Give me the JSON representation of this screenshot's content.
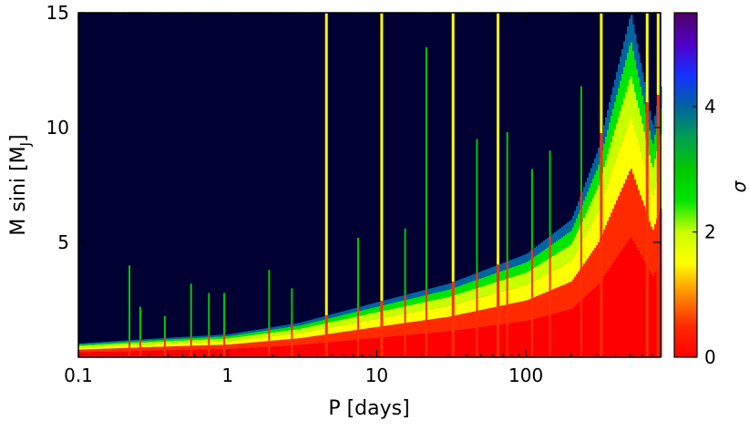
{
  "chart_data": {
    "type": "heatmap",
    "xlabel": "P [days]",
    "ylabel_main": "M sini [M",
    "ylabel_sub": "J",
    "ylabel_close": "]",
    "x_scale": "log",
    "xlim": [
      0.1,
      800
    ],
    "ylim": [
      0,
      15
    ],
    "x_ticks": [
      {
        "value": 0.1,
        "label": "0.1"
      },
      {
        "value": 1,
        "label": "1"
      },
      {
        "value": 10,
        "label": "10"
      },
      {
        "value": 100,
        "label": "100"
      }
    ],
    "y_ticks": [
      {
        "value": 5,
        "label": "5"
      },
      {
        "value": 10,
        "label": "10"
      },
      {
        "value": 15,
        "label": "15"
      }
    ],
    "colorbar": {
      "label": "σ",
      "range": [
        0,
        5.5
      ],
      "ticks": [
        {
          "value": 0,
          "label": "0"
        },
        {
          "value": 2,
          "label": "2"
        },
        {
          "value": 4,
          "label": "4"
        }
      ],
      "stops": [
        {
          "value": 0.0,
          "color": "#ff0000"
        },
        {
          "value": 0.5,
          "color": "#ff2a00"
        },
        {
          "value": 1.0,
          "color": "#ff8c00"
        },
        {
          "value": 1.5,
          "color": "#ffff00"
        },
        {
          "value": 2.0,
          "color": "#c8ff00"
        },
        {
          "value": 2.5,
          "color": "#00e600"
        },
        {
          "value": 3.0,
          "color": "#00c800"
        },
        {
          "value": 3.5,
          "color": "#00a050"
        },
        {
          "value": 4.0,
          "color": "#0064a0"
        },
        {
          "value": 4.5,
          "color": "#1432ff"
        },
        {
          "value": 5.0,
          "color": "#5000c8"
        },
        {
          "value": 5.5,
          "color": "#500064"
        }
      ]
    },
    "background_color": "#000033",
    "ridge_base": [
      {
        "period": 0.1,
        "mass": 0.6
      },
      {
        "period": 0.3,
        "mass": 0.8
      },
      {
        "period": 1,
        "mass": 1.0
      },
      {
        "period": 3,
        "mass": 1.5
      },
      {
        "period": 10,
        "mass": 2.4
      },
      {
        "period": 30,
        "mass": 3.2
      },
      {
        "period": 100,
        "mass": 4.5
      },
      {
        "period": 200,
        "mass": 6.0
      },
      {
        "period": 300,
        "mass": 9.0
      },
      {
        "period": 500,
        "mass": 15.0
      },
      {
        "period": 700,
        "mass": 10.0
      },
      {
        "period": 800,
        "mass": 12.0
      }
    ],
    "spikes": [
      {
        "period": 0.22,
        "mass": 4.0
      },
      {
        "period": 0.26,
        "mass": 2.2
      },
      {
        "period": 0.38,
        "mass": 1.8
      },
      {
        "period": 0.57,
        "mass": 3.2
      },
      {
        "period": 0.75,
        "mass": 2.8
      },
      {
        "period": 0.95,
        "mass": 2.8
      },
      {
        "period": 1.9,
        "mass": 3.8
      },
      {
        "period": 2.7,
        "mass": 3.0
      },
      {
        "period": 4.6,
        "mass": 15.0
      },
      {
        "period": 7.5,
        "mass": 5.2
      },
      {
        "period": 10.8,
        "mass": 15.0
      },
      {
        "period": 15.5,
        "mass": 5.6
      },
      {
        "period": 21.5,
        "mass": 13.5
      },
      {
        "period": 32.5,
        "mass": 15.0
      },
      {
        "period": 47,
        "mass": 9.5
      },
      {
        "period": 65,
        "mass": 15.0
      },
      {
        "period": 75,
        "mass": 9.8
      },
      {
        "period": 110,
        "mass": 8.2
      },
      {
        "period": 145,
        "mass": 9.0
      },
      {
        "period": 235,
        "mass": 11.8
      },
      {
        "period": 320,
        "mass": 15.0
      },
      {
        "period": 650,
        "mass": 15.0
      },
      {
        "period": 770,
        "mass": 15.0
      }
    ]
  }
}
